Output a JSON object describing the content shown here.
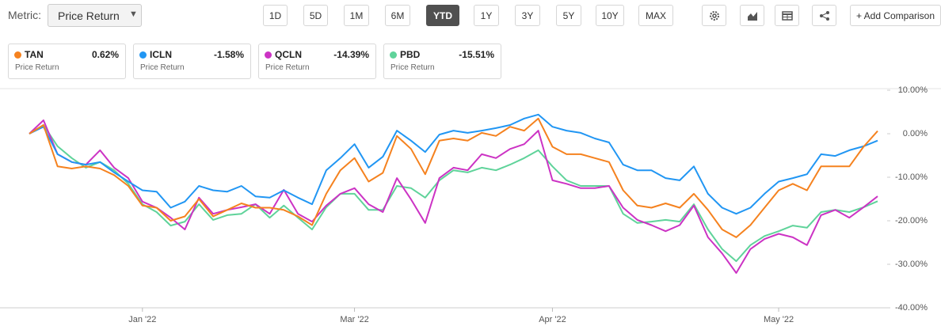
{
  "toolbar": {
    "metric_label": "Metric:",
    "metric_value": "Price Return",
    "ranges": [
      "1D",
      "5D",
      "1M",
      "6M",
      "YTD",
      "1Y",
      "3Y",
      "5Y",
      "10Y",
      "MAX"
    ],
    "active_range": "YTD",
    "add_comparison": "+ Add Comparison"
  },
  "chart_data": {
    "type": "line",
    "categories": [
      null,
      null,
      null,
      null,
      null,
      null,
      null,
      null,
      "Jan '22",
      null,
      null,
      null,
      null,
      null,
      null,
      null,
      null,
      null,
      null,
      null,
      null,
      null,
      null,
      "Mar '22",
      null,
      null,
      null,
      null,
      null,
      null,
      null,
      null,
      null,
      null,
      null,
      null,
      null,
      "Apr '22",
      null,
      null,
      null,
      null,
      null,
      null,
      null,
      null,
      null,
      null,
      null,
      null,
      null,
      null,
      null,
      "May '22",
      null,
      null,
      null,
      null,
      null,
      null,
      null
    ],
    "ylim": [
      -40,
      10
    ],
    "yticks": [
      {
        "value": 10,
        "label": "10.00%"
      },
      {
        "value": 0,
        "label": "0.00%"
      },
      {
        "value": -10,
        "label": "-10.00%"
      },
      {
        "value": -20,
        "label": "-20.00%"
      },
      {
        "value": -30,
        "label": "-30.00%"
      },
      {
        "value": -40,
        "label": "-40.00%"
      }
    ],
    "grid": false,
    "series": [
      {
        "name": "TAN",
        "color": "#f5821f",
        "last_label": "0.62%",
        "metric": "Price Return",
        "values": [
          0,
          2,
          -7.5,
          -8,
          -7.5,
          -8,
          -9.5,
          -12,
          -16.5,
          -17,
          -20,
          -19,
          -15,
          -19,
          -17.5,
          -16,
          -17,
          -17,
          -17.5,
          -19,
          -21,
          -13.8,
          -8.4,
          -5.6,
          -11,
          -9,
          -0.5,
          -3.5,
          -9.3,
          -1.6,
          -1.1,
          -1.6,
          0.2,
          -0.5,
          1.6,
          0.7,
          3.5,
          -3,
          -4.7,
          -4.7,
          -5.6,
          -6.5,
          -13,
          -16.5,
          -17,
          -16,
          -17,
          -13.8,
          -17.5,
          -22,
          -23.8,
          -21,
          -17,
          -13,
          -11.5,
          -13,
          -7.5,
          -7.5,
          -7.5,
          -3,
          0.62
        ]
      },
      {
        "name": "ICLN",
        "color": "#2196f3",
        "last_label": "-1.58%",
        "metric": "Price Return",
        "values": [
          0,
          1.6,
          -4.7,
          -6.5,
          -7.1,
          -6.5,
          -8.9,
          -11,
          -13,
          -13.3,
          -17,
          -15.6,
          -12,
          -13,
          -13.3,
          -12,
          -14.4,
          -14.7,
          -13,
          -14.7,
          -16.2,
          -8.4,
          -5.6,
          -2.4,
          -7.8,
          -5.3,
          0.7,
          -1.6,
          -4.2,
          -0.2,
          0.7,
          0.2,
          0.7,
          1.3,
          2,
          3.5,
          4.4,
          1.6,
          0.7,
          0.2,
          -1.1,
          -2,
          -7.1,
          -8.4,
          -8.4,
          -10.2,
          -10.7,
          -7.5,
          -13.8,
          -17,
          -18.4,
          -17,
          -13.8,
          -11,
          -10.2,
          -9.3,
          -4.7,
          -5.1,
          -3.8,
          -2.9,
          -1.58
        ]
      },
      {
        "name": "QCLN",
        "color": "#cc33c4",
        "last_label": "-14.39%",
        "metric": "Price Return",
        "values": [
          0,
          3.1,
          -4.7,
          -6.5,
          -7.1,
          -3.8,
          -7.8,
          -10.2,
          -15.6,
          -17,
          -19.3,
          -22,
          -14.7,
          -18.4,
          -17.5,
          -16.9,
          -16.2,
          -18.4,
          -12.9,
          -18.4,
          -20.2,
          -16.5,
          -13.8,
          -12.5,
          -16.2,
          -18,
          -10.2,
          -15.1,
          -20.5,
          -10.2,
          -7.8,
          -8.4,
          -4.7,
          -5.6,
          -3.5,
          -2.4,
          0.7,
          -10.7,
          -11.5,
          -12.5,
          -12.5,
          -12,
          -17,
          -19.8,
          -21,
          -22.4,
          -21,
          -16.5,
          -23.8,
          -27.5,
          -32,
          -26.5,
          -24.2,
          -23,
          -23.8,
          -25.6,
          -18.7,
          -17.5,
          -19.3,
          -16.9,
          -14.39
        ]
      },
      {
        "name": "PBD",
        "color": "#5fd39a",
        "last_label": "-15.51%",
        "metric": "Price Return",
        "values": [
          0,
          2,
          -2.9,
          -5.6,
          -7.8,
          -6.5,
          -8.4,
          -11.5,
          -16.2,
          -18,
          -21.1,
          -20.2,
          -16.2,
          -19.8,
          -18.7,
          -18.4,
          -16.2,
          -19.3,
          -16.5,
          -19.3,
          -22,
          -16.9,
          -13.8,
          -13.8,
          -17.5,
          -17.5,
          -12,
          -12.5,
          -14.7,
          -10.7,
          -8.4,
          -8.9,
          -7.8,
          -8.4,
          -7.1,
          -5.6,
          -3.8,
          -7.5,
          -10.7,
          -12,
          -12,
          -12,
          -18.4,
          -20.5,
          -20.2,
          -19.8,
          -20.2,
          -16.2,
          -22,
          -26.5,
          -29.3,
          -25.6,
          -23.5,
          -22.4,
          -21.1,
          -21.6,
          -18,
          -17.5,
          -18,
          -16.9,
          -15.51
        ]
      }
    ]
  }
}
